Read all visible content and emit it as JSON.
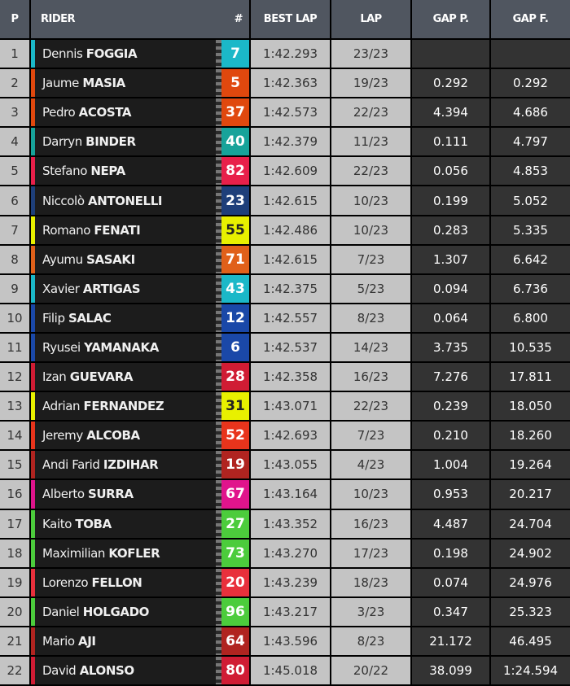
{
  "header": {
    "p": "P",
    "rider": "RIDER",
    "num": "#",
    "best_lap": "BEST LAP",
    "lap": "LAP",
    "gap_p": "GAP P.",
    "gap_f": "GAP F."
  },
  "rows": [
    {
      "p": "1",
      "first": "Dennis",
      "last": "FOGGIA",
      "num": "7",
      "color": "#1bb8c8",
      "best": "1:42.293",
      "lap": "23/23",
      "gap_p": "",
      "gap_f": ""
    },
    {
      "p": "2",
      "first": "Jaume",
      "last": "MASIA",
      "num": "5",
      "color": "#e0480e",
      "best": "1:42.363",
      "lap": "19/23",
      "gap_p": "0.292",
      "gap_f": "0.292"
    },
    {
      "p": "3",
      "first": "Pedro",
      "last": "ACOSTA",
      "num": "37",
      "color": "#e0480e",
      "best": "1:42.573",
      "lap": "22/23",
      "gap_p": "4.394",
      "gap_f": "4.686"
    },
    {
      "p": "4",
      "first": "Darryn",
      "last": "BINDER",
      "num": "40",
      "color": "#17a39a",
      "best": "1:42.379",
      "lap": "11/23",
      "gap_p": "0.111",
      "gap_f": "4.797"
    },
    {
      "p": "5",
      "first": "Stefano",
      "last": "NEPA",
      "num": "82",
      "color": "#e8204a",
      "best": "1:42.609",
      "lap": "22/23",
      "gap_p": "0.056",
      "gap_f": "4.853"
    },
    {
      "p": "6",
      "first": "Niccolò",
      "last": "ANTONELLI",
      "num": "23",
      "color": "#1e3f7a",
      "best": "1:42.615",
      "lap": "10/23",
      "gap_p": "0.199",
      "gap_f": "5.052"
    },
    {
      "p": "7",
      "first": "Romano",
      "last": "FENATI",
      "num": "55",
      "color": "#e8f000",
      "text": "#222",
      "best": "1:42.486",
      "lap": "10/23",
      "gap_p": "0.283",
      "gap_f": "5.335"
    },
    {
      "p": "8",
      "first": "Ayumu",
      "last": "SASAKI",
      "num": "71",
      "color": "#e0601a",
      "best": "1:42.615",
      "lap": "7/23",
      "gap_p": "1.307",
      "gap_f": "6.642"
    },
    {
      "p": "9",
      "first": "Xavier",
      "last": "ARTIGAS",
      "num": "43",
      "color": "#1bb8c8",
      "best": "1:42.375",
      "lap": "5/23",
      "gap_p": "0.094",
      "gap_f": "6.736"
    },
    {
      "p": "10",
      "first": "Filip",
      "last": "SALAC",
      "num": "12",
      "color": "#1a48a8",
      "best": "1:42.557",
      "lap": "8/23",
      "gap_p": "0.064",
      "gap_f": "6.800"
    },
    {
      "p": "11",
      "first": "Ryusei",
      "last": "YAMANAKA",
      "num": "6",
      "color": "#1a48a8",
      "best": "1:42.537",
      "lap": "14/23",
      "gap_p": "3.735",
      "gap_f": "10.535"
    },
    {
      "p": "12",
      "first": "Izan",
      "last": "GUEVARA",
      "num": "28",
      "color": "#d01c34",
      "best": "1:42.358",
      "lap": "16/23",
      "gap_p": "7.276",
      "gap_f": "17.811"
    },
    {
      "p": "13",
      "first": "Adrian",
      "last": "FERNANDEZ",
      "num": "31",
      "color": "#e8f000",
      "text": "#222",
      "best": "1:43.071",
      "lap": "22/23",
      "gap_p": "0.239",
      "gap_f": "18.050"
    },
    {
      "p": "14",
      "first": "Jeremy",
      "last": "ALCOBA",
      "num": "52",
      "color": "#e8341c",
      "best": "1:42.693",
      "lap": "7/23",
      "gap_p": "0.210",
      "gap_f": "18.260"
    },
    {
      "p": "15",
      "first": "Andi Farid",
      "last": "IZDIHAR",
      "num": "19",
      "color": "#b02420",
      "best": "1:43.055",
      "lap": "4/23",
      "gap_p": "1.004",
      "gap_f": "19.264"
    },
    {
      "p": "16",
      "first": "Alberto",
      "last": "SURRA",
      "num": "67",
      "color": "#e0148c",
      "best": "1:43.164",
      "lap": "10/23",
      "gap_p": "0.953",
      "gap_f": "20.217"
    },
    {
      "p": "17",
      "first": "Kaito",
      "last": "TOBA",
      "num": "27",
      "color": "#4ccc3c",
      "best": "1:43.352",
      "lap": "16/23",
      "gap_p": "4.487",
      "gap_f": "24.704"
    },
    {
      "p": "18",
      "first": "Maximilian",
      "last": "KOFLER",
      "num": "73",
      "color": "#4ccc3c",
      "best": "1:43.270",
      "lap": "17/23",
      "gap_p": "0.198",
      "gap_f": "24.902"
    },
    {
      "p": "19",
      "first": "Lorenzo",
      "last": "FELLON",
      "num": "20",
      "color": "#e8303c",
      "best": "1:43.239",
      "lap": "18/23",
      "gap_p": "0.074",
      "gap_f": "24.976"
    },
    {
      "p": "20",
      "first": "Daniel",
      "last": "HOLGADO",
      "num": "96",
      "color": "#4ccc3c",
      "best": "1:43.217",
      "lap": "3/23",
      "gap_p": "0.347",
      "gap_f": "25.323"
    },
    {
      "p": "21",
      "first": "Mario",
      "last": "AJI",
      "num": "64",
      "color": "#b02420",
      "best": "1:43.596",
      "lap": "8/23",
      "gap_p": "21.172",
      "gap_f": "46.495"
    },
    {
      "p": "22",
      "first": "David",
      "last": "ALONSO",
      "num": "80",
      "color": "#d01c34",
      "best": "1:45.018",
      "lap": "20/22",
      "gap_p": "38.099",
      "gap_f": "1:24.594"
    }
  ]
}
